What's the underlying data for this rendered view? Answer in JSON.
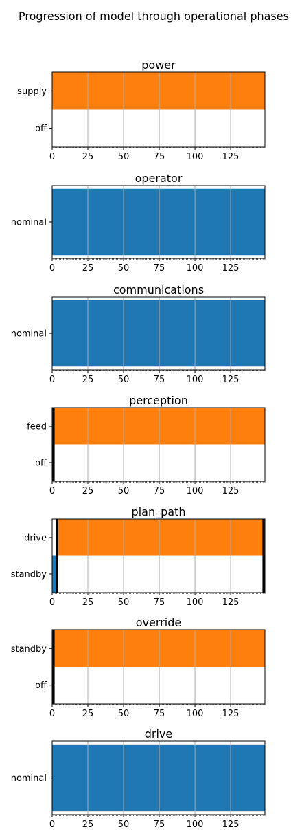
{
  "suptitle": "Progression of model through operational phases",
  "colors": {
    "blue": "#1f77b4",
    "orange": "#ff7f0e",
    "grid": "#b0b0b0",
    "frame": "#000000"
  },
  "chart_data": [
    {
      "type": "bar",
      "orientation": "horizontal-timeline",
      "title": "power",
      "xlim": [
        0,
        149
      ],
      "xticks": [
        0,
        25,
        50,
        75,
        100,
        125
      ],
      "categories": [
        "off",
        "supply"
      ],
      "segments": [
        {
          "category": "supply",
          "start": 0,
          "end": 149,
          "color": "orange"
        }
      ],
      "vertical_marks": [],
      "grid": "x"
    },
    {
      "type": "bar",
      "orientation": "horizontal-timeline",
      "title": "operator",
      "xlim": [
        0,
        149
      ],
      "xticks": [
        0,
        25,
        50,
        75,
        100,
        125
      ],
      "categories": [
        "nominal"
      ],
      "segments": [
        {
          "category": "nominal",
          "start": 0,
          "end": 149,
          "color": "blue"
        }
      ],
      "vertical_marks": [],
      "grid": "x"
    },
    {
      "type": "bar",
      "orientation": "horizontal-timeline",
      "title": "communications",
      "xlim": [
        0,
        149
      ],
      "xticks": [
        0,
        25,
        50,
        75,
        100,
        125
      ],
      "categories": [
        "nominal"
      ],
      "segments": [
        {
          "category": "nominal",
          "start": 0,
          "end": 149,
          "color": "blue"
        }
      ],
      "vertical_marks": [],
      "grid": "x"
    },
    {
      "type": "bar",
      "orientation": "horizontal-timeline",
      "title": "perception",
      "xlim": [
        0,
        149
      ],
      "xticks": [
        0,
        25,
        50,
        75,
        100,
        125
      ],
      "categories": [
        "off",
        "feed"
      ],
      "segments": [
        {
          "category": "off",
          "start": 0,
          "end": 1,
          "color": "blue"
        },
        {
          "category": "feed",
          "start": 1,
          "end": 149,
          "color": "orange"
        }
      ],
      "vertical_marks": [
        1
      ],
      "grid": "x"
    },
    {
      "type": "bar",
      "orientation": "horizontal-timeline",
      "title": "plan_path",
      "xlim": [
        0,
        149
      ],
      "xticks": [
        0,
        25,
        50,
        75,
        100,
        125
      ],
      "categories": [
        "standby",
        "drive"
      ],
      "segments": [
        {
          "category": "standby",
          "start": 0,
          "end": 3.5,
          "color": "blue"
        },
        {
          "category": "drive",
          "start": 3.5,
          "end": 148,
          "color": "orange"
        },
        {
          "category": "standby",
          "start": 148,
          "end": 149,
          "color": "blue"
        }
      ],
      "vertical_marks": [
        3.5,
        148
      ],
      "grid": "x"
    },
    {
      "type": "bar",
      "orientation": "horizontal-timeline",
      "title": "override",
      "xlim": [
        0,
        149
      ],
      "xticks": [
        0,
        25,
        50,
        75,
        100,
        125
      ],
      "categories": [
        "off",
        "standby"
      ],
      "segments": [
        {
          "category": "off",
          "start": 0,
          "end": 1,
          "color": "blue"
        },
        {
          "category": "standby",
          "start": 1,
          "end": 149,
          "color": "orange"
        }
      ],
      "vertical_marks": [
        1
      ],
      "grid": "x"
    },
    {
      "type": "bar",
      "orientation": "horizontal-timeline",
      "title": "drive",
      "xlim": [
        0,
        149
      ],
      "xticks": [
        0,
        25,
        50,
        75,
        100,
        125
      ],
      "categories": [
        "nominal"
      ],
      "segments": [
        {
          "category": "nominal",
          "start": 0,
          "end": 149,
          "color": "blue"
        }
      ],
      "vertical_marks": [],
      "grid": "x"
    }
  ]
}
